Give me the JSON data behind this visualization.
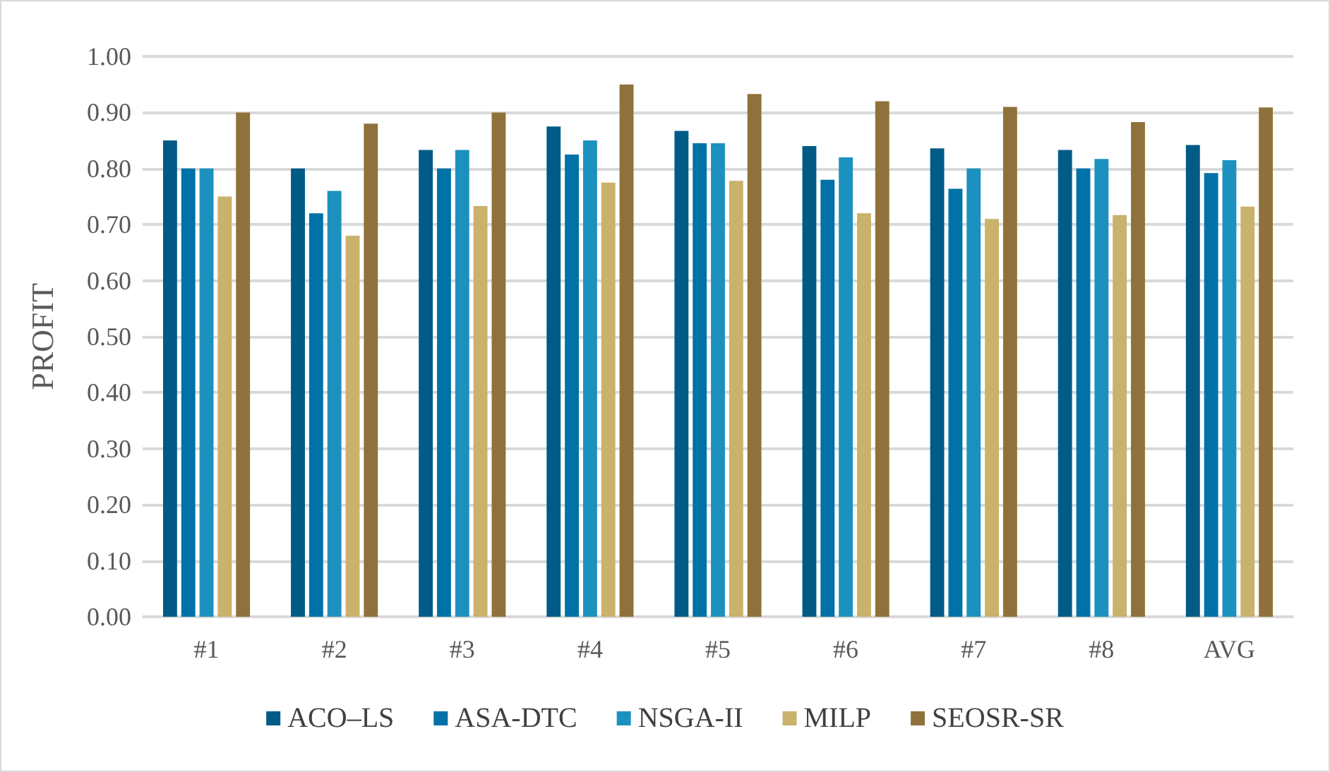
{
  "chart_data": {
    "type": "bar",
    "ylabel": "PROFIT",
    "categories": [
      "#1",
      "#2",
      "#3",
      "#4",
      "#5",
      "#6",
      "#7",
      "#8",
      "AVG"
    ],
    "series": [
      {
        "name": "ACO–LS",
        "color": "#005b86",
        "values": [
          0.85,
          0.8,
          0.833,
          0.875,
          0.867,
          0.84,
          0.836,
          0.833,
          0.842
        ]
      },
      {
        "name": "ASA-DTC",
        "color": "#0072a8",
        "values": [
          0.8,
          0.72,
          0.8,
          0.825,
          0.845,
          0.78,
          0.764,
          0.8,
          0.792
        ]
      },
      {
        "name": "NSGA-II",
        "color": "#1c91c0",
        "values": [
          0.8,
          0.76,
          0.833,
          0.85,
          0.845,
          0.82,
          0.8,
          0.817,
          0.815
        ]
      },
      {
        "name": "MILP",
        "color": "#c9b26b",
        "values": [
          0.75,
          0.68,
          0.733,
          0.775,
          0.778,
          0.72,
          0.71,
          0.717,
          0.732
        ]
      },
      {
        "name": "SEOSR-SR",
        "color": "#8f723b",
        "values": [
          0.9,
          0.88,
          0.9,
          0.95,
          0.933,
          0.92,
          0.91,
          0.883,
          0.909
        ]
      }
    ],
    "ylim": [
      0,
      1
    ],
    "yticks": [
      {
        "value": 0,
        "label": "0.00"
      },
      {
        "value": 0.1,
        "label": "0.10"
      },
      {
        "value": 0.2,
        "label": "0.20"
      },
      {
        "value": 0.3,
        "label": "0.30"
      },
      {
        "value": 0.4,
        "label": "0.40"
      },
      {
        "value": 0.5,
        "label": "0.50"
      },
      {
        "value": 0.6,
        "label": "0.60"
      },
      {
        "value": 0.7,
        "label": "0.70"
      },
      {
        "value": 0.8,
        "label": "0.80"
      },
      {
        "value": 0.9,
        "label": "0.90"
      },
      {
        "value": 1,
        "label": "1.00"
      }
    ],
    "grid": "y",
    "legend": "bottom"
  }
}
